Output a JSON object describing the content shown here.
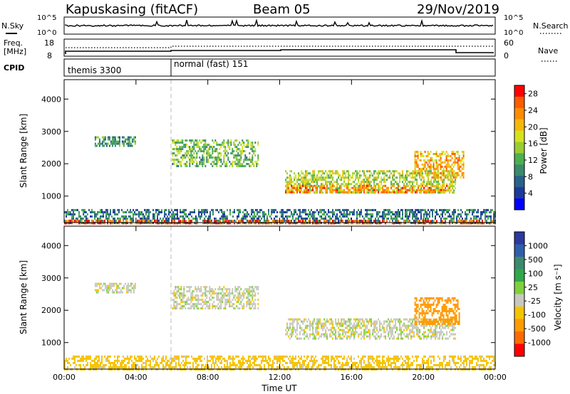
{
  "header": {
    "station": "Kapuskasing (fitACF)",
    "beam": "Beam 05",
    "date": "29/Nov/2019"
  },
  "noise_panel": {
    "left_label": "N.Sky",
    "left_ticks": [
      "10^5",
      "10^0"
    ],
    "right_label": "N.Search",
    "right_ticks": [
      "10^5",
      "10^0"
    ]
  },
  "freq_panel": {
    "left_label_1": "Freq.",
    "left_label_2": "[MHz]",
    "left_ticks": [
      "18",
      "8"
    ],
    "right_label": "Nave",
    "right_ticks": [
      "60",
      "0"
    ]
  },
  "cpid_panel": {
    "label": "CPID",
    "segments": [
      {
        "text": "themis 3300",
        "start_hour": 0
      },
      {
        "text": "normal (fast) 151",
        "start_hour": 6
      }
    ]
  },
  "chart_data": [
    {
      "type": "heatmap",
      "name": "power",
      "ylabel": "Slant Range [km]",
      "y_ticks": [
        "4000",
        "3000",
        "2000",
        "1000"
      ],
      "y_tick_values": [
        4000,
        3000,
        2000,
        1000
      ],
      "ylim": [
        180,
        4600
      ],
      "x_ticks": [
        "00:00",
        "04:00",
        "08:00",
        "12:00",
        "16:00",
        "20:00",
        "00:00"
      ],
      "xlim_hours": [
        0,
        24
      ],
      "colorbar": {
        "label": "Power [dB]",
        "ticks": [
          "28",
          "24",
          "20",
          "16",
          "12",
          "8",
          "4"
        ],
        "range": [
          0,
          30
        ],
        "colors": [
          "#0000ff",
          "#1c3a9c",
          "#27628a",
          "#3b8a6b",
          "#4caf50",
          "#9acd32",
          "#d7e21e",
          "#f5b80a",
          "#ff8c00",
          "#ff5a00",
          "#ff0000"
        ]
      },
      "regions": [
        {
          "hour_start": 1.7,
          "hour_end": 4.0,
          "range_km": [
            2550,
            2850
          ],
          "value": 10
        },
        {
          "hour_start": 6.0,
          "hour_end": 10.8,
          "range_km": [
            1950,
            2750
          ],
          "value": 13
        },
        {
          "hour_start": 12.3,
          "hour_end": 21.8,
          "range_km": [
            1100,
            1800
          ],
          "value": 16
        },
        {
          "hour_start": 12.3,
          "hour_end": 21.5,
          "range_km": [
            1100,
            1350
          ],
          "value": 23
        },
        {
          "hour_start": 19.5,
          "hour_end": 22.2,
          "range_km": [
            1600,
            2400
          ],
          "value": 21
        },
        {
          "hour_start": 0.0,
          "hour_end": 24.0,
          "range_km": [
            200,
            600
          ],
          "value": 8
        },
        {
          "hour_start": 0.0,
          "hour_end": 24.0,
          "range_km": [
            180,
            260
          ],
          "value": 26
        }
      ]
    },
    {
      "type": "heatmap",
      "name": "velocity",
      "ylabel": "Slant Range [km]",
      "y_ticks": [
        "4000",
        "3000",
        "2000",
        "1000"
      ],
      "y_tick_values": [
        4000,
        3000,
        2000,
        1000
      ],
      "ylim": [
        180,
        4600
      ],
      "x_ticks": [
        "00:00",
        "04:00",
        "08:00",
        "12:00",
        "16:00",
        "20:00",
        "00:00"
      ],
      "xlim_hours": [
        0,
        24
      ],
      "xlabel": "Time UT",
      "colorbar": {
        "label": "Velocity [m s⁻¹]",
        "ticks": [
          "1000",
          "500",
          "100",
          "25",
          "-25",
          "-100",
          "-500",
          "-1000"
        ],
        "colors": [
          "#2b3a9e",
          "#2f5faa",
          "#3b8a6b",
          "#2fa84a",
          "#7fd13b",
          "#c8c8c0",
          "#f5c400",
          "#ff9a00",
          "#ff6a00",
          "#ff0000"
        ]
      },
      "regions": [
        {
          "hour_start": 1.7,
          "hour_end": 4.0,
          "range_km": [
            2550,
            2850
          ],
          "value": 0
        },
        {
          "hour_start": 6.0,
          "hour_end": 10.8,
          "range_km": [
            2050,
            2750
          ],
          "value": 0
        },
        {
          "hour_start": 12.3,
          "hour_end": 21.8,
          "range_km": [
            1100,
            1750
          ],
          "value": 0
        },
        {
          "hour_start": 19.5,
          "hour_end": 22.0,
          "range_km": [
            1600,
            2400
          ],
          "value": -300
        },
        {
          "hour_start": 0.0,
          "hour_end": 24.0,
          "range_km": [
            200,
            600
          ],
          "value": -60
        }
      ]
    }
  ]
}
